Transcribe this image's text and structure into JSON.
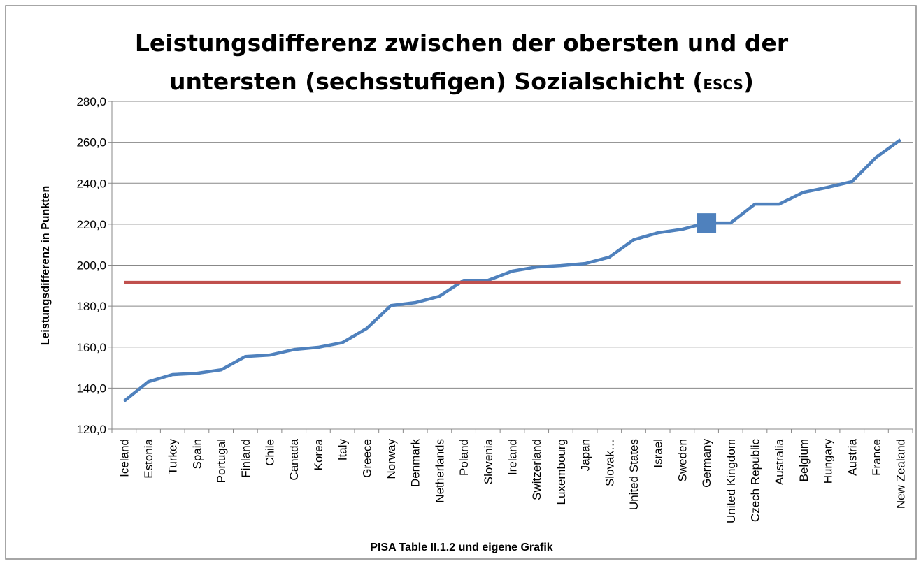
{
  "chart_data": {
    "type": "line",
    "title": [
      "Leistungsdifferenz zwischen der obersten und der",
      "untersten (sechsstufigen) Sozialschicht (",
      "ESCS",
      ")"
    ],
    "x_label": "PISA Table II.1.2 und eigene Grafik",
    "y_label": "Leistungsdifferenz in Punkten",
    "categories": [
      "Iceland",
      "Estonia",
      "Turkey",
      "Spain",
      "Portugal",
      "Finland",
      "Chile",
      "Canada",
      "Korea",
      "Italy",
      "Greece",
      "Norway",
      "Denmark",
      "Netherlands",
      "Poland",
      "Slovenia",
      "Ireland",
      "Switzerland",
      "Luxembourg",
      "Japan",
      "Slovak…",
      "United States",
      "Israel",
      "Sweden",
      "Germany",
      "United Kingdom",
      "Czech Republic",
      "Australia",
      "Belgium",
      "Hungary",
      "Austria",
      "France",
      "New Zealand"
    ],
    "series": [
      {
        "color": "#4f81bd",
        "marker_at": "Germany",
        "values": [
          133.6,
          143.1,
          146.6,
          147.2,
          148.9,
          155.4,
          156.1,
          158.8,
          159.9,
          162.2,
          169.1,
          180.3,
          181.7,
          184.8,
          192.6,
          192.6,
          197.1,
          199.1,
          199.8,
          200.8,
          203.9,
          212.4,
          215.8,
          217.5,
          220.6,
          220.6,
          229.8,
          229.8,
          235.6,
          238.0,
          240.8,
          252.7,
          261.2
        ]
      },
      {
        "color": "#c0504d",
        "values": [
          191.6,
          191.6,
          191.6,
          191.6,
          191.6,
          191.6,
          191.6,
          191.6,
          191.6,
          191.6,
          191.6,
          191.6,
          191.6,
          191.6,
          191.6,
          191.6,
          191.6,
          191.6,
          191.6,
          191.6,
          191.6,
          191.6,
          191.6,
          191.6,
          191.6,
          191.6,
          191.6,
          191.6,
          191.6,
          191.6,
          191.6,
          191.6,
          191.6
        ]
      }
    ],
    "ylim": [
      120,
      280
    ],
    "yticks": [
      {
        "value": 120,
        "label": "120,0"
      },
      {
        "value": 140,
        "label": "140,0"
      },
      {
        "value": 160,
        "label": "160,0"
      },
      {
        "value": 180,
        "label": "180,0"
      },
      {
        "value": 200,
        "label": "200,0"
      },
      {
        "value": 220,
        "label": "220,0"
      },
      {
        "value": 240,
        "label": "240,0"
      },
      {
        "value": 260,
        "label": "260,0"
      },
      {
        "value": 280,
        "label": "280,0"
      }
    ],
    "grid": true
  }
}
